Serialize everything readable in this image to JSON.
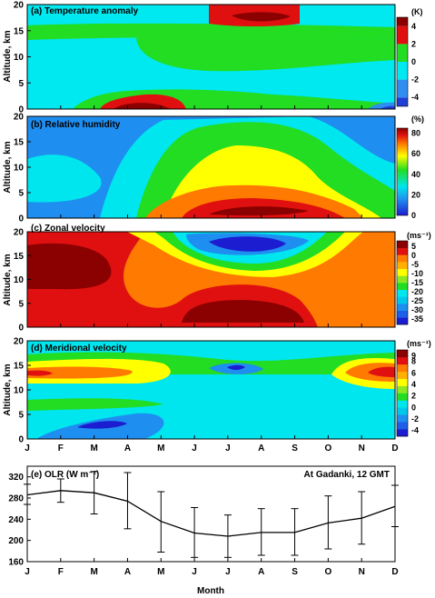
{
  "figure": {
    "months": [
      "J",
      "F",
      "M",
      "A",
      "M",
      "J",
      "J",
      "A",
      "S",
      "O",
      "N",
      "D"
    ],
    "ylabel_altitude": "Altitude, km",
    "xlabel": "Month"
  },
  "chart_data": [
    {
      "type": "heatmap",
      "title": "(a) Temperature anomaly",
      "units": "(K)",
      "ylabel": "Altitude, km",
      "ylim": [
        0,
        20
      ],
      "yticks": [
        0,
        5,
        10,
        15,
        20
      ],
      "colorbar_ticks": [
        -4,
        -2,
        0,
        2,
        4
      ],
      "colorbar_bins": [
        {
          "min": -5,
          "max": -4,
          "color": "#1f3fd6"
        },
        {
          "min": -4,
          "max": -2,
          "color": "#2f8ef0"
        },
        {
          "min": -2,
          "max": 0,
          "color": "#00e8f0"
        },
        {
          "min": 0,
          "max": 2,
          "color": "#22dd22"
        },
        {
          "min": 2,
          "max": 4,
          "color": "#e01010"
        },
        {
          "min": 4,
          "max": 5,
          "color": "#8b0000"
        }
      ],
      "features": [
        {
          "region": "Jan-Dec, 16-17 km",
          "value_range": [
            0,
            2
          ]
        },
        {
          "region": "Jul-Sep, 17-20 km",
          "value_range": [
            2,
            5
          ]
        },
        {
          "region": "Mar-Jun, 9-16 km",
          "value_range": [
            0,
            2
          ]
        },
        {
          "region": "Feb-Jun, 0-3 km",
          "value_range": [
            0,
            4
          ]
        },
        {
          "region": "Mar-May, 0-2 km",
          "value_range": [
            2,
            4
          ]
        },
        {
          "region": "Dec, 0-1 km",
          "value_range": [
            -5,
            -2
          ]
        }
      ]
    },
    {
      "type": "heatmap",
      "title": "(b) Relative humidity",
      "units": "(%)",
      "ylabel": "Altitude, km",
      "ylim": [
        0,
        20
      ],
      "yticks": [
        0,
        5,
        10,
        15,
        20
      ],
      "colorbar_ticks": [
        0,
        20,
        40,
        60,
        80
      ],
      "colorbar_range": [
        0,
        85
      ],
      "features": [
        {
          "region": "Jan-Apr, 0-20 km",
          "value_range": [
            10,
            40
          ]
        },
        {
          "region": "May-Oct, 5-15 km",
          "value_range": [
            40,
            60
          ]
        },
        {
          "region": "Jun-Sep, 0-4 km",
          "value_range": [
            70,
            85
          ]
        },
        {
          "region": "Nov-Dec, 0-20 km",
          "value_range": [
            20,
            40
          ]
        }
      ]
    },
    {
      "type": "heatmap",
      "title": "(c) Zonal velocity",
      "units": "(ms⁻¹)",
      "ylabel": "Altitude, km",
      "ylim": [
        0,
        20
      ],
      "yticks": [
        0,
        5,
        10,
        15,
        20
      ],
      "colorbar_ticks": [
        5,
        0,
        -5,
        -10,
        -15,
        -20,
        -25,
        -30,
        -35
      ],
      "colorbar_range": [
        -38,
        8
      ],
      "features": [
        {
          "region": "Jan-Feb, 8-17 km",
          "value_range": [
            5,
            8
          ]
        },
        {
          "region": "Jun-Aug, 13-20 km",
          "value_range": [
            -38,
            -25
          ]
        },
        {
          "region": "Jun-Sep, 1-6 km",
          "value_range": [
            5,
            8
          ]
        },
        {
          "region": "Oct-Dec, 0-20 km",
          "value_range": [
            -5,
            0
          ]
        }
      ]
    },
    {
      "type": "heatmap",
      "title": "(d) Meridional velocity",
      "units": "(ms⁻¹)",
      "ylabel": "Altitude, km",
      "ylim": [
        0,
        20
      ],
      "yticks": [
        0,
        5,
        10,
        15,
        20
      ],
      "colorbar_ticks": [
        9,
        8,
        6,
        4,
        2,
        0,
        -2,
        -4
      ],
      "colorbar_range": [
        -5,
        10
      ],
      "features": [
        {
          "region": "Jan-May, 12-16 km",
          "value_range": [
            4,
            8
          ]
        },
        {
          "region": "Nov-Dec, 12-16 km",
          "value_range": [
            6,
            10
          ]
        },
        {
          "region": "Jul, 14-16 km",
          "value_range": [
            -5,
            -2
          ]
        },
        {
          "region": "Mar-Apr, 2-5 km",
          "value_range": [
            -5,
            -2
          ]
        }
      ]
    },
    {
      "type": "line",
      "title": "(e) OLR (W m⁻²)",
      "annotation": "At Gadanki, 12 GMT",
      "xlabel": "Month",
      "categories": [
        "J",
        "F",
        "M",
        "A",
        "M",
        "J",
        "J",
        "A",
        "S",
        "O",
        "N",
        "D"
      ],
      "ylim": [
        160,
        340
      ],
      "yticks": [
        160,
        200,
        240,
        280,
        320
      ],
      "series": [
        {
          "values": [
            286,
            294,
            290,
            274,
            236,
            214,
            208,
            215,
            215,
            233,
            242,
            264
          ],
          "error_low": [
            268,
            272,
            250,
            222,
            178,
            168,
            168,
            172,
            172,
            184,
            193,
            226
          ],
          "error_high": [
            306,
            316,
            330,
            328,
            292,
            262,
            248,
            260,
            260,
            284,
            292,
            304
          ]
        }
      ]
    }
  ]
}
